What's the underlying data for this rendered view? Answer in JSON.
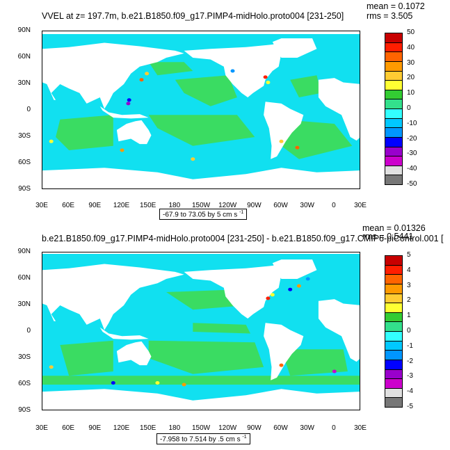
{
  "panels": [
    {
      "title": "VVEL at z= 197.7m, b.e21.B1850.f09_g17.PIMP4-midHolo.proto004 [231-250]",
      "mean": "mean = 0.1072",
      "rms": "rms = 3.505",
      "range_text": "-67.9 to 73.05 by 5 cm s",
      "range_unit_exp": "-1",
      "colorbar_labels": [
        "50",
        "40",
        "30",
        "20",
        "10",
        "0",
        "-10",
        "-20",
        "-30",
        "-40",
        "-50"
      ],
      "colors": {
        "base": "#11e0f0",
        "pos": "#3fdc52"
      }
    },
    {
      "title": "b.e21.B1850.f09_g17.PIMP4-midHolo.proto004 [231-250] - b.e21.B1850.f09_g17.CMIP6-piControl.001 [",
      "mean": "mean = 0.01326",
      "rms": "rms = 0.5441",
      "range_text": "-7.958 to 7.514 by .5 cm s",
      "range_unit_exp": "-1",
      "colorbar_labels": [
        "5",
        "4",
        "3",
        "2",
        "1",
        "0",
        "-1",
        "-2",
        "-3",
        "-4",
        "-5"
      ],
      "colors": {
        "base": "#11e0f0",
        "pos": "#3fdc52"
      }
    }
  ],
  "axes": {
    "lat_labels": [
      "90N",
      "60N",
      "30N",
      "0",
      "30S",
      "60S",
      "90S"
    ],
    "lon_labels": [
      "30E",
      "60E",
      "90E",
      "120E",
      "150E",
      "180",
      "150W",
      "120W",
      "90W",
      "60W",
      "30W",
      "0",
      "30E"
    ]
  },
  "colorbar_colors": [
    "#c80000",
    "#ff1e00",
    "#ff6400",
    "#ff9a00",
    "#ffcc33",
    "#ffff33",
    "#33cc33",
    "#33e08c",
    "#33ffff",
    "#00c8ff",
    "#0096ff",
    "#0000ff",
    "#9900cc",
    "#cc00cc",
    "#e0e0e0",
    "#777777"
  ]
}
